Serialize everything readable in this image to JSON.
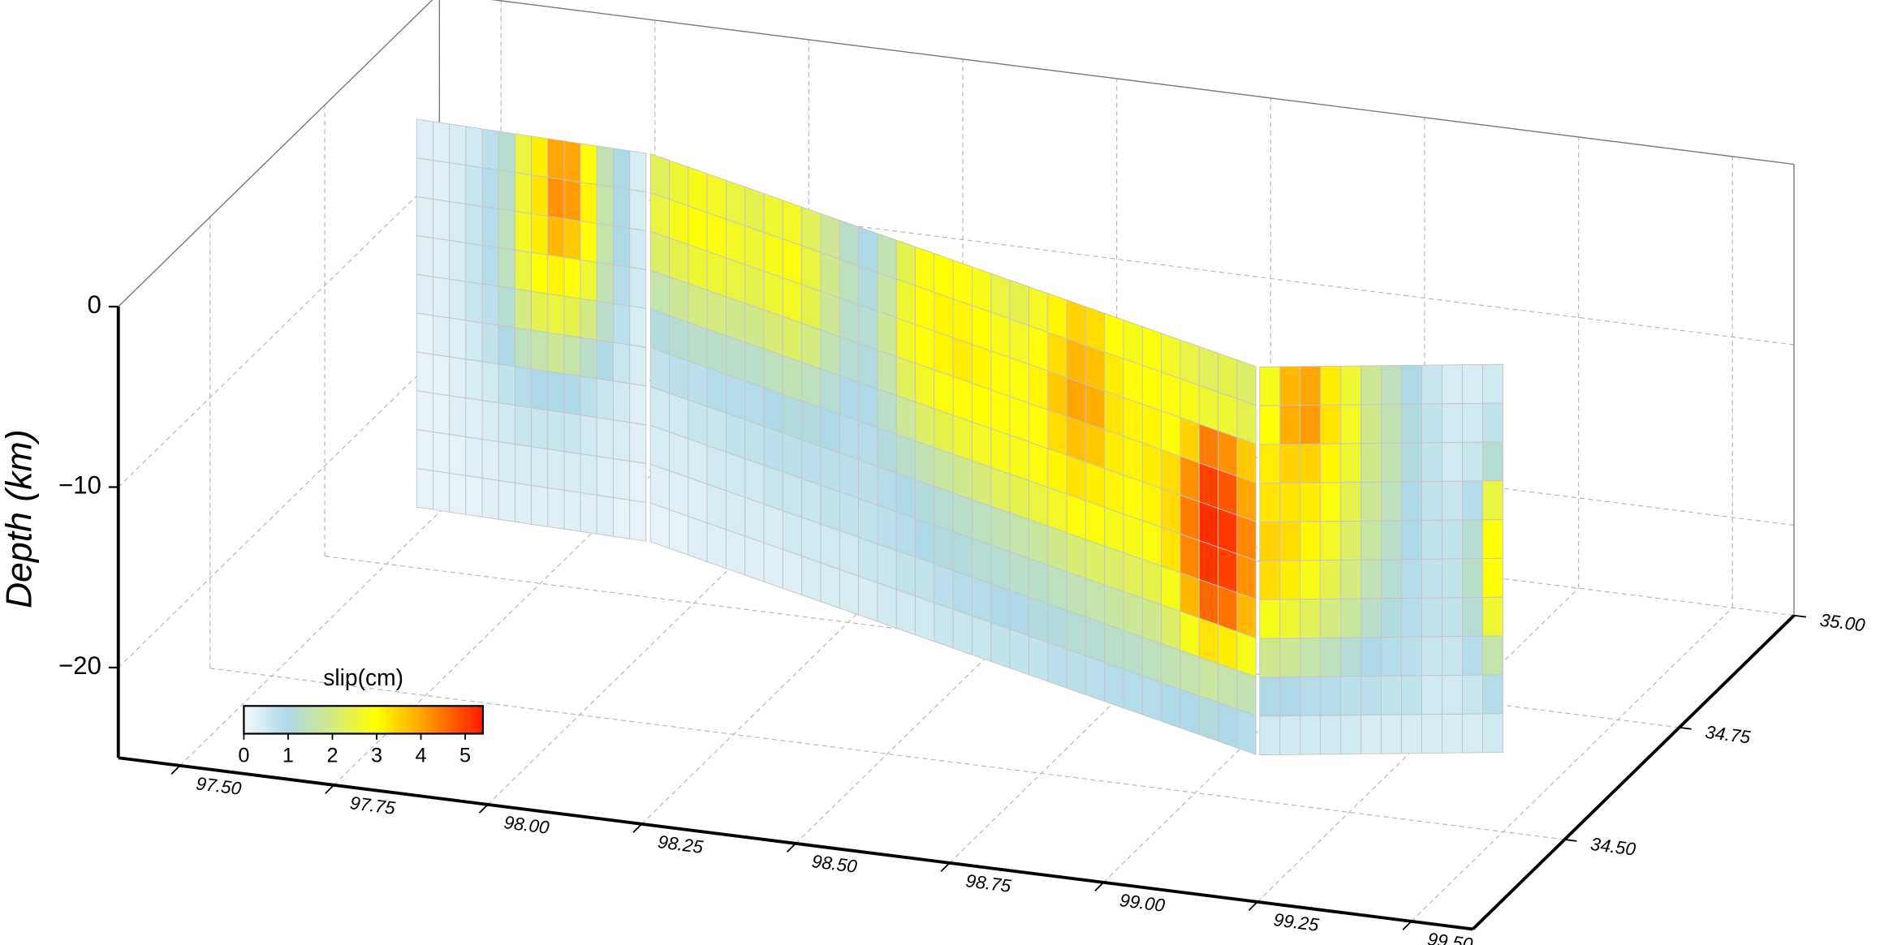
{
  "chart_data": {
    "type": "fault3d",
    "zlabel": "Depth (km)",
    "xlim": [
      97.4,
      99.6
    ],
    "ylim": [
      34.3,
      35.0
    ],
    "zlim": [
      -25,
      0
    ],
    "xticks": [
      {
        "value": 97.5,
        "label": "97.50"
      },
      {
        "value": 97.75,
        "label": "97.75"
      },
      {
        "value": 98.0,
        "label": "98.00"
      },
      {
        "value": 98.25,
        "label": "98.25"
      },
      {
        "value": 98.5,
        "label": "98.50"
      },
      {
        "value": 98.75,
        "label": "98.75"
      },
      {
        "value": 99.0,
        "label": "99.00"
      },
      {
        "value": 99.25,
        "label": "99.25"
      },
      {
        "value": 99.5,
        "label": "99.50"
      }
    ],
    "yticks": [
      {
        "value": 34.5,
        "label": "34.50"
      },
      {
        "value": 34.75,
        "label": "34.75"
      },
      {
        "value": 35.0,
        "label": "35.00"
      }
    ],
    "zticks": [
      0,
      {
        "value": -10,
        "label": "−10"
      },
      {
        "value": -20,
        "label": "−20"
      }
    ],
    "grid": true,
    "colorbar": {
      "label": "slip(cm)",
      "lim": [
        0,
        5.4
      ],
      "ticks": [
        0,
        1,
        2,
        3,
        4,
        5
      ],
      "stops": [
        0,
        1,
        2,
        3,
        4,
        5.4
      ],
      "colors": [
        "#f4f9fb",
        "#add8e6",
        "#d4ea82",
        "#ffff00",
        "#ffa500",
        "#ff1a00"
      ]
    },
    "segments": [
      {
        "start": [
          97.553,
          34.745
        ],
        "end": [
          97.933,
          34.735
        ],
        "top": 0,
        "bottom": -21.5,
        "slip": [
          [
            0.3,
            0.3,
            0.4,
            0.5,
            0.8,
            1.2,
            2.5,
            3.2,
            4.0,
            4.0,
            3.0,
            1.5,
            1.0,
            0.4
          ],
          [
            0.3,
            0.3,
            0.4,
            0.6,
            0.9,
            1.3,
            2.6,
            3.3,
            4.2,
            4.1,
            3.1,
            1.6,
            1.0,
            0.4
          ],
          [
            0.3,
            0.3,
            0.4,
            0.6,
            0.9,
            1.4,
            2.7,
            3.2,
            3.8,
            3.6,
            3.0,
            1.6,
            1.0,
            0.5
          ],
          [
            0.3,
            0.3,
            0.4,
            0.6,
            0.9,
            1.4,
            2.5,
            3.0,
            3.1,
            3.0,
            2.6,
            1.5,
            0.9,
            0.5
          ],
          [
            0.3,
            0.3,
            0.4,
            0.6,
            0.8,
            1.2,
            2.0,
            2.4,
            2.5,
            2.4,
            2.0,
            1.3,
            0.8,
            0.4
          ],
          [
            0.2,
            0.3,
            0.3,
            0.5,
            0.7,
            1.0,
            1.4,
            1.6,
            1.8,
            1.6,
            1.3,
            1.0,
            0.6,
            0.4
          ],
          [
            0.2,
            0.2,
            0.3,
            0.4,
            0.5,
            0.7,
            0.9,
            1.0,
            1.0,
            1.0,
            0.8,
            0.6,
            0.5,
            0.3
          ],
          [
            0.2,
            0.2,
            0.3,
            0.3,
            0.4,
            0.5,
            0.6,
            0.6,
            0.6,
            0.6,
            0.5,
            0.4,
            0.4,
            0.3
          ],
          [
            0.2,
            0.2,
            0.2,
            0.3,
            0.3,
            0.4,
            0.4,
            0.4,
            0.4,
            0.4,
            0.4,
            0.3,
            0.3,
            0.2
          ],
          [
            0.2,
            0.2,
            0.2,
            0.2,
            0.3,
            0.3,
            0.3,
            0.3,
            0.3,
            0.3,
            0.3,
            0.3,
            0.2,
            0.2
          ]
        ]
      },
      {
        "start": [
          97.94,
          34.735
        ],
        "end": [
          99.124,
          34.466
        ],
        "top": 0,
        "bottom": -21.5,
        "slip": [
          [
            2.3,
            2.6,
            2.8,
            2.7,
            2.5,
            2.4,
            2.6,
            2.7,
            2.3,
            1.8,
            1.3,
            1.0,
            1.5,
            2.4,
            2.9,
            3.0,
            3.0,
            2.8,
            2.5,
            2.4,
            2.7,
            3.1,
            3.5,
            3.4,
            3.0,
            2.8,
            2.9,
            2.7,
            2.5,
            2.3,
            2.4,
            2.2
          ],
          [
            2.5,
            2.8,
            3.0,
            2.9,
            2.7,
            2.6,
            2.8,
            2.9,
            2.5,
            1.9,
            1.4,
            1.1,
            1.7,
            2.6,
            3.0,
            3.1,
            3.1,
            3.0,
            2.8,
            2.7,
            3.0,
            3.4,
            3.8,
            3.7,
            3.2,
            3.0,
            3.0,
            2.9,
            2.8,
            2.6,
            2.6,
            2.4
          ],
          [
            2.2,
            2.4,
            2.6,
            2.6,
            2.5,
            2.4,
            2.6,
            2.7,
            2.4,
            1.8,
            1.3,
            1.2,
            1.8,
            2.7,
            3.0,
            3.1,
            3.2,
            3.1,
            3.0,
            2.9,
            3.1,
            3.6,
            4.0,
            3.9,
            3.3,
            3.1,
            3.1,
            3.0,
            3.5,
            4.4,
            4.2,
            3.6
          ],
          [
            1.6,
            1.8,
            2.0,
            2.0,
            1.9,
            1.9,
            2.1,
            2.2,
            2.0,
            1.5,
            1.2,
            1.1,
            1.6,
            2.3,
            2.7,
            2.9,
            3.0,
            3.0,
            3.0,
            2.9,
            3.0,
            3.4,
            3.7,
            3.6,
            3.2,
            3.1,
            3.2,
            3.4,
            4.2,
            5.0,
            4.8,
            4.0
          ],
          [
            1.1,
            1.2,
            1.3,
            1.3,
            1.3,
            1.3,
            1.4,
            1.5,
            1.4,
            1.2,
            1.0,
            1.0,
            1.3,
            1.8,
            2.2,
            2.4,
            2.6,
            2.7,
            2.8,
            2.8,
            2.9,
            3.1,
            3.3,
            3.2,
            3.1,
            3.0,
            3.1,
            3.4,
            4.4,
            5.2,
            5.1,
            4.3
          ],
          [
            0.7,
            0.8,
            0.8,
            0.9,
            0.9,
            0.9,
            1.0,
            1.1,
            1.1,
            1.0,
            0.9,
            0.9,
            1.1,
            1.3,
            1.5,
            1.7,
            1.9,
            2.1,
            2.3,
            2.4,
            2.5,
            2.7,
            2.9,
            2.9,
            2.8,
            2.8,
            2.9,
            3.3,
            4.3,
            5.1,
            5.0,
            4.2
          ],
          [
            0.5,
            0.5,
            0.6,
            0.6,
            0.7,
            0.7,
            0.8,
            0.8,
            0.8,
            0.8,
            0.8,
            0.8,
            0.9,
            1.0,
            1.1,
            1.2,
            1.3,
            1.4,
            1.5,
            1.6,
            1.7,
            1.9,
            2.1,
            2.2,
            2.2,
            2.3,
            2.4,
            2.8,
            3.8,
            4.6,
            4.5,
            3.8
          ],
          [
            0.4,
            0.4,
            0.4,
            0.5,
            0.5,
            0.5,
            0.6,
            0.6,
            0.6,
            0.7,
            0.7,
            0.7,
            0.8,
            0.9,
            1.0,
            1.1,
            1.1,
            1.2,
            1.2,
            1.3,
            1.3,
            1.4,
            1.5,
            1.6,
            1.7,
            1.8,
            1.9,
            2.2,
            2.8,
            3.3,
            3.2,
            2.8
          ],
          [
            0.3,
            0.3,
            0.3,
            0.4,
            0.4,
            0.4,
            0.4,
            0.5,
            0.5,
            0.5,
            0.5,
            0.6,
            0.6,
            0.7,
            0.7,
            0.8,
            0.9,
            0.9,
            1.0,
            1.0,
            1.1,
            1.1,
            1.2,
            1.2,
            1.3,
            1.3,
            1.4,
            1.5,
            1.6,
            1.7,
            1.6,
            1.5
          ],
          [
            0.2,
            0.2,
            0.3,
            0.3,
            0.3,
            0.3,
            0.3,
            0.3,
            0.4,
            0.4,
            0.4,
            0.4,
            0.5,
            0.5,
            0.5,
            0.6,
            0.6,
            0.6,
            0.7,
            0.7,
            0.7,
            0.8,
            0.8,
            0.8,
            0.9,
            0.9,
            0.9,
            1.0,
            1.0,
            1.1,
            1.0,
            0.9
          ]
        ]
      },
      {
        "start": [
          99.13,
          34.466
        ],
        "end": [
          99.476,
          34.532
        ],
        "top": 0,
        "bottom": -21.5,
        "slip": [
          [
            2.8,
            3.8,
            4.0,
            3.2,
            2.6,
            1.8,
            1.4,
            1.0,
            0.6,
            0.4,
            0.4,
            0.5
          ],
          [
            3.0,
            3.9,
            4.1,
            3.3,
            2.7,
            1.9,
            1.5,
            1.1,
            0.7,
            0.5,
            0.5,
            0.7
          ],
          [
            3.2,
            3.5,
            3.5,
            3.1,
            2.6,
            1.9,
            1.5,
            1.1,
            0.7,
            0.5,
            0.6,
            1.2
          ],
          [
            3.3,
            3.3,
            3.2,
            2.9,
            2.4,
            1.8,
            1.4,
            1.0,
            0.7,
            0.6,
            0.9,
            2.5
          ],
          [
            3.5,
            3.4,
            3.1,
            2.7,
            2.2,
            1.7,
            1.3,
            1.0,
            0.7,
            0.7,
            1.2,
            3.0
          ],
          [
            3.4,
            3.2,
            2.8,
            2.4,
            2.0,
            1.5,
            1.2,
            0.9,
            0.7,
            0.7,
            1.3,
            3.0
          ],
          [
            2.8,
            2.6,
            2.3,
            2.0,
            1.7,
            1.3,
            1.1,
            0.9,
            0.7,
            0.7,
            1.2,
            2.6
          ],
          [
            1.9,
            1.8,
            1.6,
            1.4,
            1.2,
            1.0,
            0.9,
            0.8,
            0.6,
            0.6,
            0.9,
            1.6
          ],
          [
            1.0,
            1.0,
            0.9,
            0.9,
            0.8,
            0.8,
            0.7,
            0.7,
            0.5,
            0.5,
            0.6,
            0.9
          ],
          [
            0.5,
            0.5,
            0.5,
            0.5,
            0.5,
            0.4,
            0.4,
            0.4,
            0.4,
            0.4,
            0.4,
            0.5
          ]
        ]
      }
    ]
  }
}
